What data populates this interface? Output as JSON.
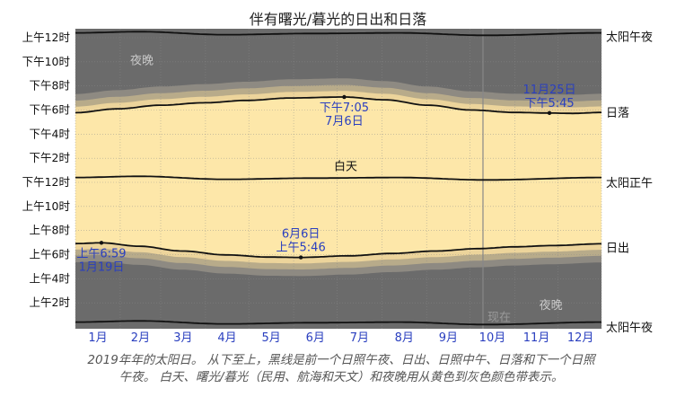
{
  "title": "伴有曙光/暮光的日出和日落",
  "caption_line1": "2019年年的太阳日。 从下至上，黑线是前一个日照午夜、日出、日照中午、日落和下一个日照",
  "caption_line2": "午夜。 白天、曙光/暮光（民用、航海和天文）和夜晚用从黄色到灰色颜色带表示。",
  "chart_data": {
    "type": "area",
    "year": 2019,
    "y_axis": {
      "range_hours": [
        0,
        24
      ],
      "tick_labels": [
        "上午2时",
        "上午4时",
        "上午6时",
        "上午8时",
        "上午10时",
        "下午12时",
        "下午2时",
        "下午4时",
        "下午6时",
        "下午8时",
        "下午10时",
        "上午12时"
      ],
      "tick_hours": [
        2,
        4,
        6,
        8,
        10,
        12,
        14,
        16,
        18,
        20,
        22,
        24
      ]
    },
    "x_axis": {
      "month_labels": [
        "1月",
        "2月",
        "3月",
        "4月",
        "5月",
        "6月",
        "7月",
        "8月",
        "9月",
        "10月",
        "11月",
        "12月"
      ]
    },
    "right_labels": [
      {
        "text": "太阳午夜",
        "hour": 24.1
      },
      {
        "text": "日落",
        "hour": 17.8
      },
      {
        "text": "太阳正午",
        "hour": 12.0
      },
      {
        "text": "日出",
        "hour": 6.6
      },
      {
        "text": "太阳午夜",
        "hour": 0.0
      }
    ],
    "region_labels": {
      "night": "夜晚",
      "day": "白天",
      "now": "现在"
    },
    "series": [
      {
        "name": "日出",
        "days": [
          1,
          19,
          45,
          75,
          105,
          135,
          157,
          190,
          220,
          250,
          280,
          305,
          330,
          365
        ],
        "hours": [
          6.92,
          6.98,
          6.7,
          6.3,
          5.98,
          5.8,
          5.77,
          5.9,
          6.1,
          6.3,
          6.5,
          6.65,
          6.75,
          6.9
        ]
      },
      {
        "name": "日落",
        "days": [
          1,
          30,
          60,
          90,
          120,
          150,
          187,
          215,
          245,
          275,
          305,
          329,
          345,
          365
        ],
        "hours": [
          17.78,
          18.1,
          18.4,
          18.6,
          18.8,
          19.0,
          19.08,
          18.85,
          18.4,
          18.0,
          17.8,
          17.75,
          17.72,
          17.8
        ]
      },
      {
        "name": "太阳正午",
        "days": [
          1,
          45,
          105,
          165,
          225,
          285,
          365
        ],
        "hours": [
          12.4,
          12.5,
          12.25,
          12.35,
          12.4,
          12.2,
          12.4
        ]
      },
      {
        "name": "太阳午夜（前）",
        "days": [
          1,
          45,
          105,
          165,
          225,
          285,
          365
        ],
        "hours": [
          0.4,
          0.5,
          0.25,
          0.35,
          0.4,
          0.2,
          0.4
        ]
      },
      {
        "name": "太阳午夜（后）",
        "days": [
          1,
          45,
          105,
          165,
          225,
          285,
          365
        ],
        "hours": [
          24.4,
          24.5,
          24.25,
          24.35,
          24.4,
          24.2,
          24.4
        ]
      }
    ],
    "now_day": 283,
    "annotations": [
      {
        "series": "日出",
        "day": 19,
        "label": "上午6:59",
        "date": "1月19日"
      },
      {
        "series": "日出",
        "day": 157,
        "label": "上午5:46",
        "date": "6月6日"
      },
      {
        "series": "日落",
        "day": 187,
        "label": "下午7:05",
        "date": "7月6日"
      },
      {
        "series": "日落",
        "day": 329,
        "label": "下午5:45",
        "date": "11月25日"
      }
    ],
    "colors": {
      "day": "#fde7a9",
      "twilight1": "#ecd49b",
      "twilight2": "#b8ab8a",
      "twilight3": "#8e8a82",
      "night": "#6b6b6b",
      "line": "#111111",
      "annotation": "#2a3fbf"
    }
  }
}
